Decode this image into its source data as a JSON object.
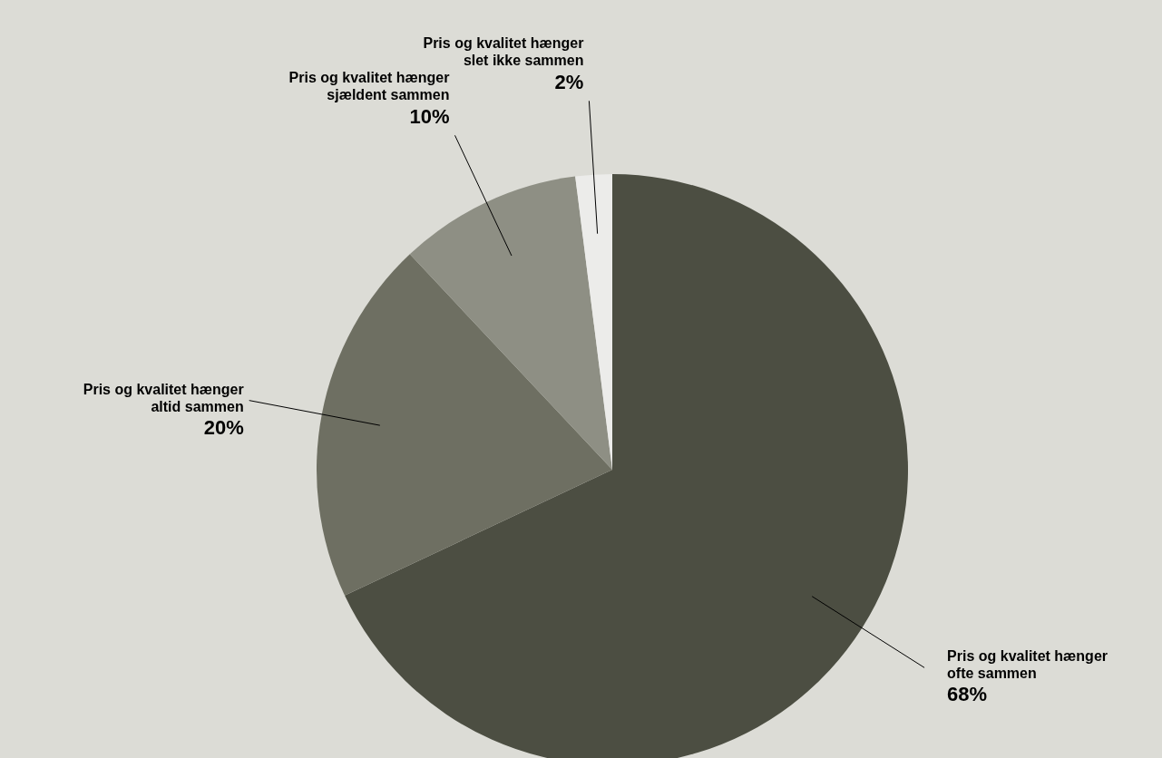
{
  "chart_data": {
    "type": "pie",
    "categories": [
      "Pris og kvalitet hænger ofte sammen",
      "Pris og kvalitet hænger altid sammen",
      "Pris og kvalitet hænger sjældent sammen",
      "Pris og kvalitet hænger slet ikke sammen"
    ],
    "values": [
      68,
      20,
      10,
      2
    ],
    "colors": [
      "#4c4e42",
      "#6e6f62",
      "#8e8f84",
      "#ececea"
    ],
    "value_labels": [
      "68%",
      "20%",
      "10%",
      "2%"
    ]
  }
}
